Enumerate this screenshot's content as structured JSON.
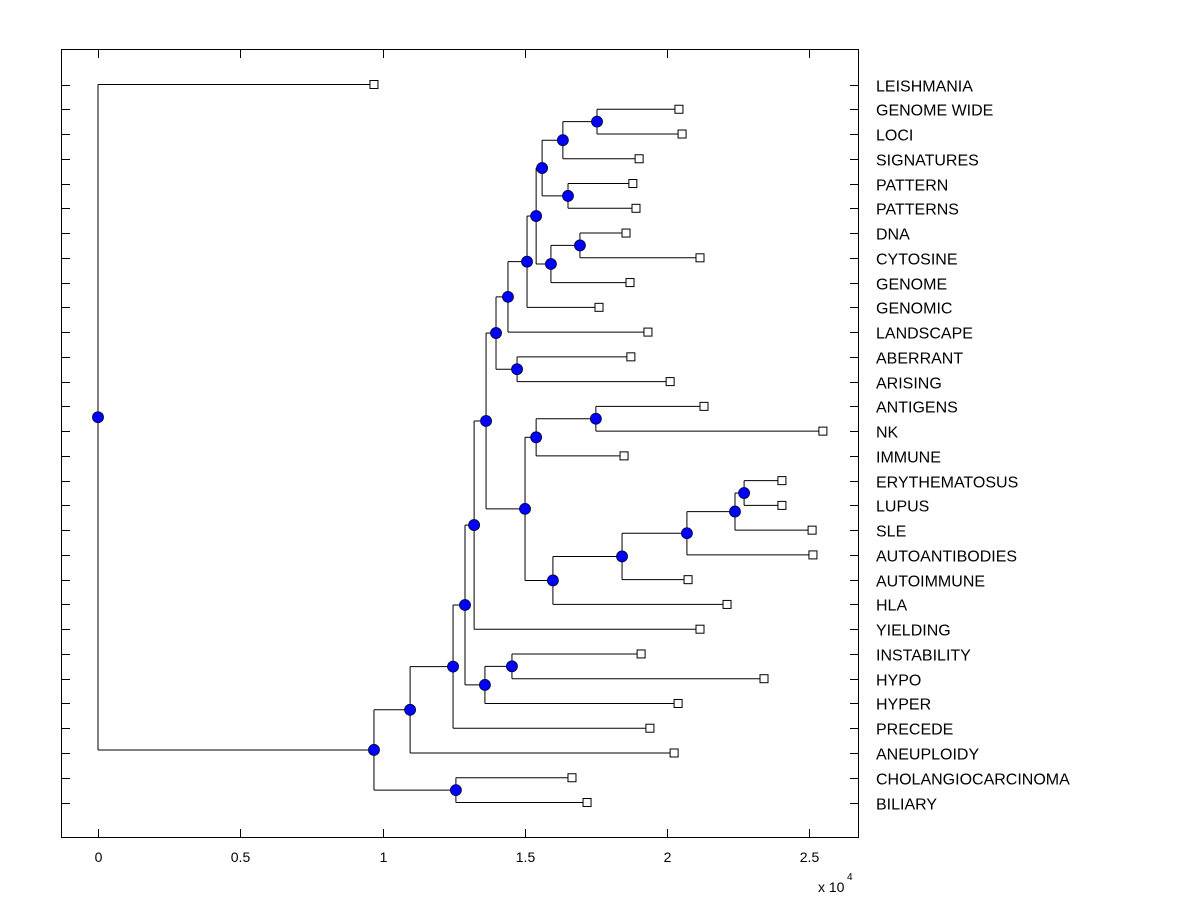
{
  "chart_data": {
    "type": "dendrogram",
    "title": "",
    "xlabel": "",
    "x_multiplier_label": "x 10",
    "x_multiplier_exponent": "4",
    "xlim": [
      -0.13,
      2.67
    ],
    "xticks": [
      0,
      0.5,
      1,
      1.5,
      2,
      2.5
    ],
    "xtick_labels": [
      "0",
      "0.5",
      "1",
      "1.5",
      "2",
      "2.5"
    ],
    "grid": false,
    "node_color": "#0000ff",
    "leaves": [
      "LEISHMANIA",
      "GENOME WIDE",
      "LOCI",
      "SIGNATURES",
      "PATTERN",
      "PATTERNS",
      "DNA",
      "CYTOSINE",
      "GENOME",
      "GENOMIC",
      "LANDSCAPE",
      "ABERRANT",
      "ARISING",
      "ANTIGENS",
      "NK",
      "IMMUNE",
      "ERYTHEMATOSUS",
      "LUPUS",
      "SLE",
      "AUTOANTIBODIES",
      "AUTOIMMUNE",
      "HLA",
      "YIELDING",
      "INSTABILITY",
      "HYPO",
      "HYPER",
      "PRECEDE",
      "ANEUPLOIDY",
      "CHOLANGIOCARCINOMA",
      "BILIARY"
    ],
    "tree": {
      "x": 0.0,
      "children": [
        {
          "leaf": "LEISHMANIA",
          "x": 0.97
        },
        {
          "x": 0.97,
          "children": [
            {
              "x": 1.097,
              "children": [
                {
                  "x": 1.248,
                  "children": [
                    {
                      "x": 1.29,
                      "children": [
                        {
                          "x": 1.322,
                          "children": [
                            {
                              "x": 1.364,
                              "children": [
                                {
                                  "x": 1.399,
                                  "children": [
                                    {
                                      "x": 1.441,
                                      "children": [
                                        {
                                          "x": 1.508,
                                          "children": [
                                            {
                                              "x": 1.54,
                                              "children": [
                                                {
                                                  "x": 1.561,
                                                  "children": [
                                                    {
                                                      "x": 1.634,
                                                      "children": [
                                                        {
                                                          "x": 1.754,
                                                          "children": [
                                                            {
                                                              "leaf": "GENOME WIDE",
                                                              "x": 2.042
                                                            },
                                                            {
                                                              "leaf": "LOCI",
                                                              "x": 2.053
                                                            }
                                                          ]
                                                        },
                                                        {
                                                          "leaf": "SIGNATURES",
                                                          "x": 1.902
                                                        }
                                                      ]
                                                    },
                                                    {
                                                      "x": 1.652,
                                                      "children": [
                                                        {
                                                          "leaf": "PATTERN",
                                                          "x": 1.88
                                                        },
                                                        {
                                                          "leaf": "PATTERNS",
                                                          "x": 1.891
                                                        }
                                                      ]
                                                    }
                                                  ]
                                                },
                                                {
                                                  "x": 1.592,
                                                  "children": [
                                                    {
                                                      "x": 1.694,
                                                      "children": [
                                                        {
                                                          "leaf": "DNA",
                                                          "x": 1.856
                                                        },
                                                        {
                                                          "leaf": "CYTOSINE",
                                                          "x": 2.116
                                                        }
                                                      ]
                                                    },
                                                    {
                                                      "leaf": "GENOME",
                                                      "x": 1.87
                                                    }
                                                  ]
                                                }
                                              ]
                                            },
                                            {
                                              "leaf": "GENOMIC",
                                              "x": 1.761
                                            }
                                          ]
                                        },
                                        {
                                          "leaf": "LANDSCAPE",
                                          "x": 1.933
                                        }
                                      ]
                                    },
                                    {
                                      "x": 1.473,
                                      "children": [
                                        {
                                          "leaf": "ABERRANT",
                                          "x": 1.873
                                        },
                                        {
                                          "leaf": "ARISING",
                                          "x": 2.011
                                        }
                                      ]
                                    }
                                  ]
                                },
                                {
                                  "x": 1.501,
                                  "children": [
                                    {
                                      "x": 1.54,
                                      "children": [
                                        {
                                          "x": 1.75,
                                          "children": [
                                            {
                                              "leaf": "ANTIGENS",
                                              "x": 2.13
                                            },
                                            {
                                              "leaf": "NK",
                                              "x": 2.548
                                            }
                                          ]
                                        },
                                        {
                                          "leaf": "IMMUNE",
                                          "x": 1.849
                                        }
                                      ]
                                    },
                                    {
                                      "x": 1.599,
                                      "children": [
                                        {
                                          "x": 1.842,
                                          "children": [
                                            {
                                              "x": 2.07,
                                              "children": [
                                                {
                                                  "x": 2.239,
                                                  "children": [
                                                    {
                                                      "x": 2.271,
                                                      "children": [
                                                        {
                                                          "leaf": "ERYTHEMATOSUS",
                                                          "x": 2.404
                                                        },
                                                        {
                                                          "leaf": "LUPUS",
                                                          "x": 2.404
                                                        }
                                                      ]
                                                    },
                                                    {
                                                      "leaf": "SLE",
                                                      "x": 2.51
                                                    }
                                                  ]
                                                },
                                                {
                                                  "leaf": "AUTOANTIBODIES",
                                                  "x": 2.513
                                                }
                                              ]
                                            },
                                            {
                                              "leaf": "AUTOIMMUNE",
                                              "x": 2.074
                                            }
                                          ]
                                        },
                                        {
                                          "leaf": "HLA",
                                          "x": 2.211
                                        }
                                      ]
                                    }
                                  ]
                                }
                              ]
                            },
                            {
                              "leaf": "YIELDING",
                              "x": 2.116
                            }
                          ]
                        },
                        {
                          "x": 1.36,
                          "children": [
                            {
                              "x": 1.455,
                              "children": [
                                {
                                  "leaf": "INSTABILITY",
                                  "x": 1.909
                                },
                                {
                                  "leaf": "HYPO",
                                  "x": 2.341
                                }
                              ]
                            },
                            {
                              "leaf": "HYPER",
                              "x": 2.039
                            }
                          ]
                        }
                      ]
                    },
                    {
                      "leaf": "PRECEDE",
                      "x": 1.94
                    }
                  ]
                },
                {
                  "leaf": "ANEUPLOIDY",
                  "x": 2.025
                }
              ]
            },
            {
              "x": 1.258,
              "children": [
                {
                  "leaf": "CHOLANGIOCARCINOMA",
                  "x": 1.666
                },
                {
                  "leaf": "BILIARY",
                  "x": 1.719
                }
              ]
            }
          ]
        }
      ]
    }
  }
}
